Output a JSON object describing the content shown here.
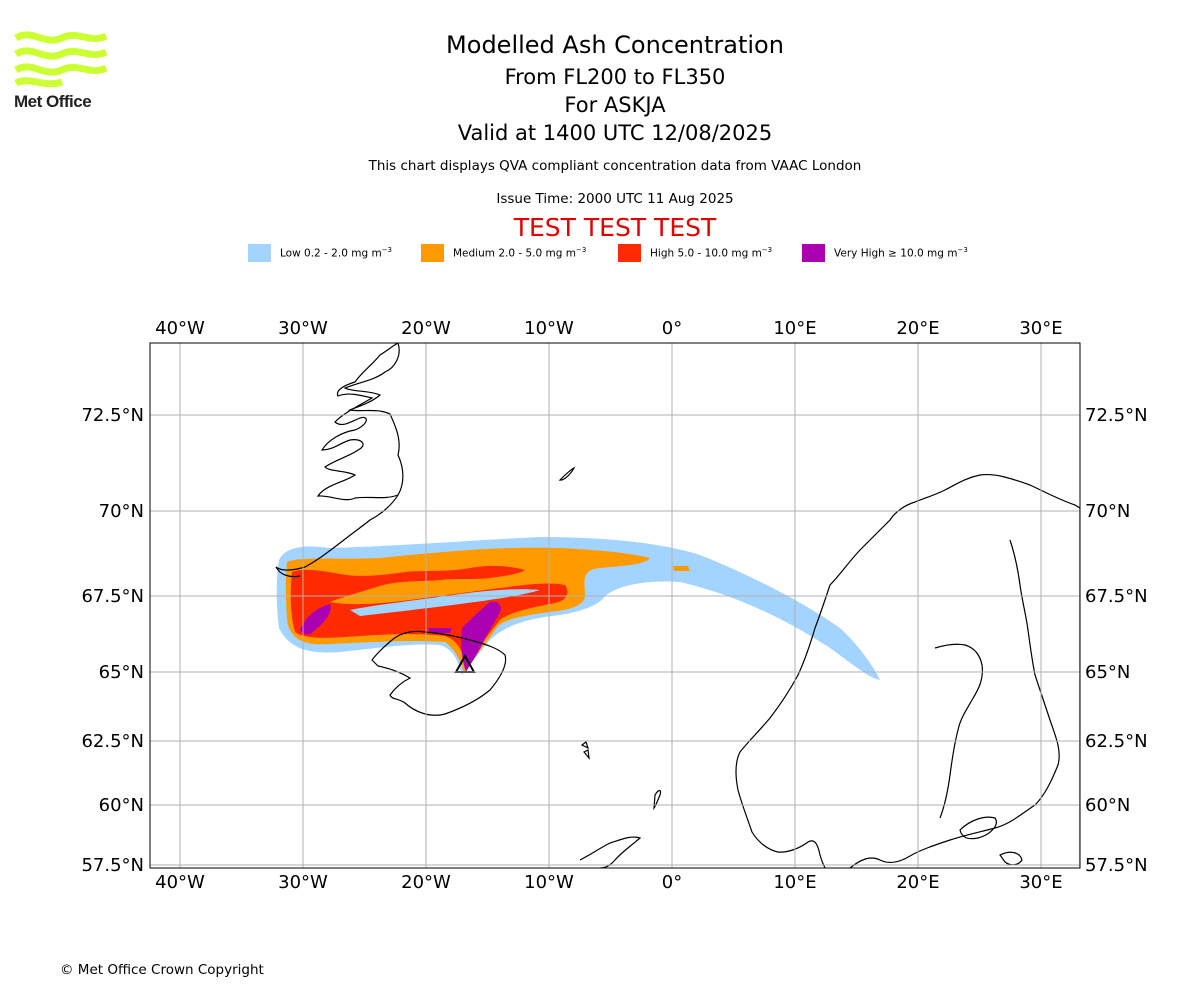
{
  "logo": {
    "text": "Met Office",
    "color": "#ccff33"
  },
  "header": {
    "title": "Modelled Ash Concentration",
    "levels": "From FL200 to FL350",
    "volcano": "For ASKJA",
    "valid_time": "Valid at 1400 UTC 12/08/2025",
    "subtitle": "This chart displays QVA compliant concentration data from VAAC London",
    "issue_time": "Issue Time: 2000 UTC 11 Aug 2025",
    "test_banner": "TEST TEST TEST"
  },
  "legend": [
    {
      "label": "Low 0.2 - 2.0 mg m",
      "sup": "−3",
      "color": "#a3d4ff"
    },
    {
      "label": "Medium 2.0 - 5.0 mg m",
      "sup": "−3",
      "color": "#ff9a00"
    },
    {
      "label": "High 5.0 - 10.0 mg m",
      "sup": "−3",
      "color": "#ff2b00"
    },
    {
      "label": "Very High ≥ 10.0 mg m",
      "sup": "−3",
      "color": "#aa00b2"
    }
  ],
  "map": {
    "lon_labels": [
      "40°W",
      "30°W",
      "20°W",
      "10°W",
      "0°",
      "10°E",
      "20°E",
      "30°E"
    ],
    "lat_labels": [
      "72.5°N",
      "70°N",
      "67.5°N",
      "65°N",
      "62.5°N",
      "60°N",
      "57.5°N"
    ],
    "volcano_marker_icon": "volcano-triangle-icon"
  },
  "footer": {
    "copyright": "© Met Office Crown Copyright"
  }
}
